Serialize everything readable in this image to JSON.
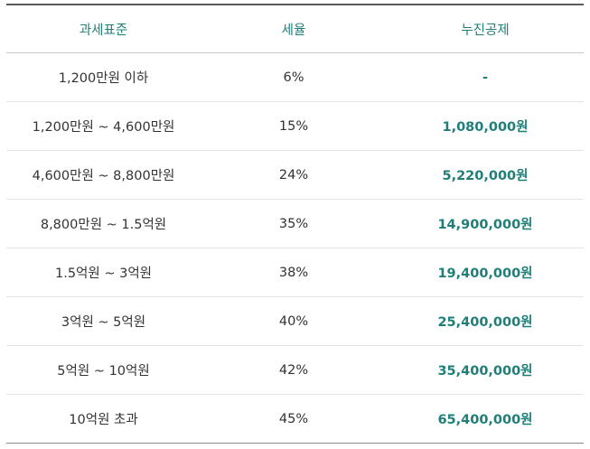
{
  "table": {
    "headers": [
      "과세표준",
      "세율",
      "누진공제"
    ],
    "rows": [
      [
        "1,200만원 이하",
        "6%",
        "-"
      ],
      [
        "1,200만원 ~ 4,600만원",
        "15%",
        "1,080,000원"
      ],
      [
        "4,600만원 ~ 8,800만원",
        "24%",
        "5,220,000원"
      ],
      [
        "8,800만원 ~ 1.5억원",
        "35%",
        "14,900,000원"
      ],
      [
        "1.5억원 ~ 3억원",
        "38%",
        "19,400,000원"
      ],
      [
        "3억원 ~ 5억원",
        "40%",
        "25,400,000원"
      ],
      [
        "5억원 ~ 10억원",
        "42%",
        "35,400,000원"
      ],
      [
        "10억원 초과",
        "45%",
        "65,400,000원"
      ]
    ]
  },
  "colors": {
    "accent": "#1f7f78",
    "text": "#333333",
    "rule": "#5a5a5a"
  }
}
